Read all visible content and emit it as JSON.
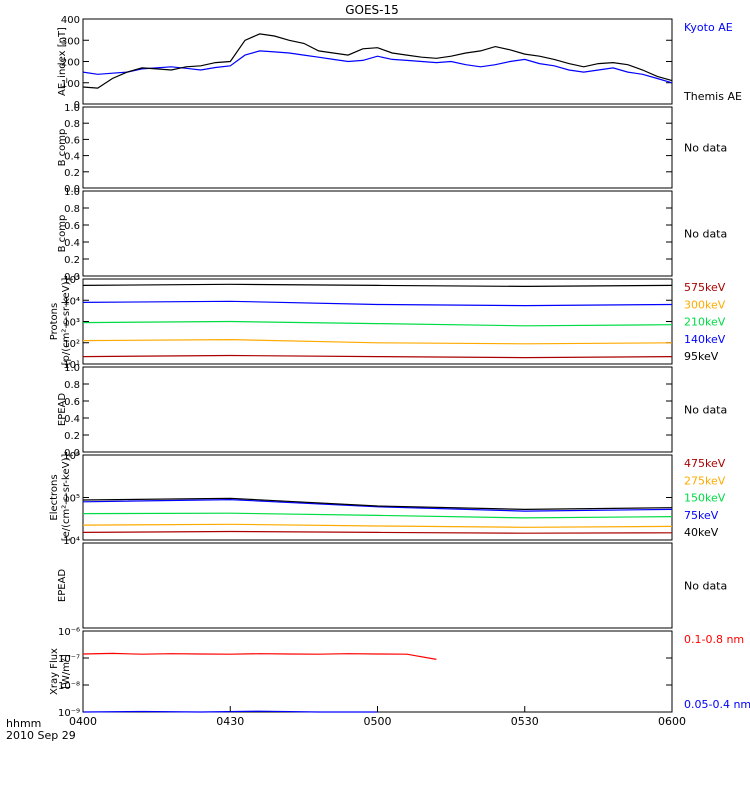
{
  "title": "GOES-15",
  "time_axis": {
    "tick_labels": [
      "0400",
      "0430",
      "0500",
      "0530",
      "0600"
    ],
    "unit_label": "hhmm",
    "date_label": "2010 Sep 29",
    "range_hours": [
      4.0,
      6.0
    ]
  },
  "chart_data": [
    {
      "type": "line",
      "panel": "ae",
      "ylabel": "AE_index [nT]",
      "ylim": [
        0,
        400
      ],
      "yticks": [
        "0",
        "100",
        "200",
        "300",
        "400"
      ],
      "series": [
        {
          "name": "Kyoto AE",
          "color": "#0000ff",
          "x": [
            4.0,
            4.05,
            4.1,
            4.15,
            4.2,
            4.25,
            4.3,
            4.35,
            4.4,
            4.45,
            4.5,
            4.55,
            4.6,
            4.65,
            4.7,
            4.75,
            4.8,
            4.85,
            4.9,
            4.95,
            5.0,
            5.05,
            5.1,
            5.15,
            5.2,
            5.25,
            5.3,
            5.35,
            5.4,
            5.45,
            5.5,
            5.55,
            5.6,
            5.65,
            5.7,
            5.75,
            5.8,
            5.85,
            5.9,
            5.95,
            6.0
          ],
          "y": [
            150,
            140,
            145,
            150,
            165,
            170,
            175,
            168,
            160,
            172,
            180,
            230,
            250,
            245,
            240,
            230,
            220,
            210,
            200,
            205,
            225,
            210,
            205,
            200,
            195,
            200,
            185,
            175,
            185,
            200,
            210,
            190,
            180,
            160,
            150,
            160,
            170,
            150,
            140,
            120,
            100
          ]
        },
        {
          "name": "Themis AE",
          "color": "#000000",
          "x": [
            4.0,
            4.05,
            4.1,
            4.15,
            4.2,
            4.25,
            4.3,
            4.35,
            4.4,
            4.45,
            4.5,
            4.55,
            4.6,
            4.65,
            4.7,
            4.75,
            4.8,
            4.85,
            4.9,
            4.95,
            5.0,
            5.05,
            5.1,
            5.15,
            5.2,
            5.25,
            5.3,
            5.35,
            5.4,
            5.45,
            5.5,
            5.55,
            5.6,
            5.65,
            5.7,
            5.75,
            5.8,
            5.85,
            5.9,
            5.95,
            6.0
          ],
          "y": [
            80,
            75,
            120,
            150,
            170,
            165,
            160,
            175,
            180,
            195,
            200,
            300,
            330,
            320,
            300,
            285,
            250,
            240,
            230,
            260,
            265,
            240,
            230,
            220,
            215,
            225,
            240,
            250,
            270,
            255,
            235,
            225,
            210,
            190,
            175,
            190,
            195,
            185,
            160,
            130,
            110
          ]
        }
      ]
    },
    {
      "type": "line",
      "panel": "bcomp1",
      "ylabel": "B comp",
      "ylim": [
        0,
        1
      ],
      "yticks": [
        "0.0",
        "0.2",
        "0.4",
        "0.6",
        "0.8",
        "1.0"
      ],
      "note": "No data",
      "series": []
    },
    {
      "type": "line",
      "panel": "bcomp2",
      "ylabel": "B comp",
      "ylim": [
        0,
        1
      ],
      "yticks": [
        "0.0",
        "0.2",
        "0.4",
        "0.6",
        "0.8",
        "1.0"
      ],
      "note": "No data",
      "series": []
    },
    {
      "type": "line",
      "panel": "protons",
      "ylabel": "Protons",
      "ylabel_units": "[p/(cm²-s-sr-keV)]",
      "log_y": true,
      "ylim_exp": [
        1,
        5
      ],
      "yticks": [
        "10¹",
        "10²",
        "10³",
        "10⁴",
        "10⁵"
      ],
      "series": [
        {
          "name": "575keV",
          "color": "#aa0000",
          "x": [
            4.0,
            4.5,
            5.0,
            5.5,
            6.0
          ],
          "y_log10": [
            1.35,
            1.4,
            1.35,
            1.3,
            1.35
          ]
        },
        {
          "name": "300keV",
          "color": "#ffaa00",
          "x": [
            4.0,
            4.5,
            5.0,
            5.5,
            6.0
          ],
          "y_log10": [
            2.1,
            2.15,
            2.0,
            1.95,
            2.0
          ]
        },
        {
          "name": "210keV",
          "color": "#00dd44",
          "x": [
            4.0,
            4.5,
            5.0,
            5.5,
            6.0
          ],
          "y_log10": [
            2.95,
            3.0,
            2.9,
            2.8,
            2.85
          ]
        },
        {
          "name": "140keV",
          "color": "#0000ff",
          "x": [
            4.0,
            4.5,
            5.0,
            5.5,
            6.0
          ],
          "y_log10": [
            3.9,
            3.95,
            3.8,
            3.75,
            3.8
          ]
        },
        {
          "name": "95keV",
          "color": "#000000",
          "x": [
            4.0,
            4.5,
            5.0,
            5.5,
            6.0
          ],
          "y_log10": [
            4.7,
            4.75,
            4.7,
            4.65,
            4.7
          ]
        }
      ]
    },
    {
      "type": "line",
      "panel": "epead1",
      "ylabel": "EPEAD",
      "ylim": [
        0,
        1
      ],
      "yticks": [
        "0.0",
        "0.2",
        "0.4",
        "0.6",
        "0.8",
        "1.0"
      ],
      "note": "No data",
      "series": []
    },
    {
      "type": "line",
      "panel": "electrons",
      "ylabel": "Electrons",
      "ylabel_units": "[e/(cm²-s-sr-keV)]",
      "log_y": true,
      "ylim_exp": [
        4,
        6
      ],
      "yticks": [
        "10⁴",
        "10⁵",
        "10⁶"
      ],
      "series": [
        {
          "name": "475keV",
          "color": "#aa0000",
          "x": [
            4.0,
            4.5,
            5.0,
            5.5,
            6.0
          ],
          "y_log10": [
            4.18,
            4.2,
            4.18,
            4.16,
            4.17
          ]
        },
        {
          "name": "275keV",
          "color": "#ffaa00",
          "x": [
            4.0,
            4.5,
            5.0,
            5.5,
            6.0
          ],
          "y_log10": [
            4.35,
            4.37,
            4.33,
            4.3,
            4.32
          ]
        },
        {
          "name": "150keV",
          "color": "#00dd44",
          "x": [
            4.0,
            4.5,
            5.0,
            5.5,
            6.0
          ],
          "y_log10": [
            4.62,
            4.63,
            4.58,
            4.52,
            4.55
          ]
        },
        {
          "name": "75keV",
          "color": "#0000ff",
          "x": [
            4.0,
            4.5,
            5.0,
            5.5,
            6.0
          ],
          "y_log10": [
            4.9,
            4.95,
            4.78,
            4.68,
            4.72
          ]
        },
        {
          "name": "40keV",
          "color": "#000000",
          "x": [
            4.0,
            4.5,
            5.0,
            5.5,
            6.0
          ],
          "y_log10": [
            4.94,
            4.98,
            4.8,
            4.72,
            4.76
          ]
        }
      ]
    },
    {
      "type": "line",
      "panel": "epead2",
      "ylabel": "EPEAD",
      "ylim": [
        0,
        1
      ],
      "yticks": [],
      "note": "No data",
      "series": []
    },
    {
      "type": "line",
      "panel": "xray",
      "ylabel": "Xray Flux",
      "ylabel_units": "[W/m²]",
      "log_y": true,
      "ylim_exp": [
        -9,
        -6
      ],
      "yticks": [
        "10⁻⁹",
        "10⁻⁸",
        "10⁻⁷",
        "10⁻⁶"
      ],
      "series": [
        {
          "name": "0.1-0.8 nm",
          "color": "#ff0000",
          "x": [
            4.0,
            4.1,
            4.2,
            4.3,
            4.4,
            4.5,
            4.6,
            4.7,
            4.8,
            4.9,
            5.0,
            5.1,
            5.2
          ],
          "y_log10": [
            -6.85,
            -6.83,
            -6.86,
            -6.84,
            -6.85,
            -6.86,
            -6.84,
            -6.85,
            -6.86,
            -6.84,
            -6.85,
            -6.86,
            -7.05
          ]
        },
        {
          "name": "0.05-0.4 nm",
          "color": "#0000ff",
          "x": [
            4.0,
            4.2,
            4.4,
            4.6,
            4.8,
            5.0
          ],
          "y_log10": [
            -9.0,
            -8.98,
            -9.0,
            -8.97,
            -9.0,
            -9.0
          ]
        }
      ]
    }
  ]
}
